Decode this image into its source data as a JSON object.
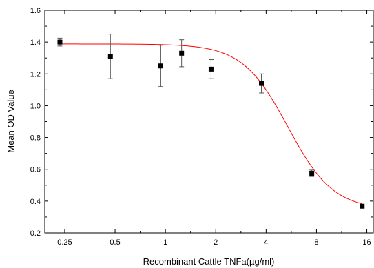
{
  "chart_data": {
    "type": "scatter",
    "title": "",
    "xlabel": "Recombinant Cattle TNFa(µg/ml)",
    "ylabel": "Mean OD Value",
    "xscale": "log2",
    "xlim": [
      0.19,
      17.5
    ],
    "ylim": [
      0.2,
      1.6
    ],
    "x_ticks": [
      0.25,
      0.5,
      1,
      2,
      4,
      8,
      16
    ],
    "x_tick_labels": [
      "0.25",
      "0.5",
      "1",
      "2",
      "4",
      "8",
      "16"
    ],
    "y_ticks": [
      0.2,
      0.4,
      0.6,
      0.8,
      1.0,
      1.2,
      1.4,
      1.6
    ],
    "y_tick_labels": [
      "0.2",
      "0.4",
      "0.6",
      "0.8",
      "1.0",
      "1.2",
      "1.4",
      "1.6"
    ],
    "grid": false,
    "series": [
      {
        "marker": "square",
        "color": "#000000",
        "x": [
          0.234,
          0.469,
          0.938,
          1.25,
          1.875,
          3.75,
          7.5,
          15
        ],
        "y": [
          1.4,
          1.31,
          1.25,
          1.33,
          1.23,
          1.14,
          0.575,
          0.368
        ],
        "yerr": [
          0.025,
          0.14,
          0.13,
          0.085,
          0.06,
          0.06,
          0.02,
          0.008
        ]
      }
    ],
    "fit_curve": {
      "color": "#ff0000",
      "model": "4PL",
      "top": 1.388,
      "bottom": 0.345,
      "ec50": 5.4,
      "hill": 3.2
    }
  }
}
